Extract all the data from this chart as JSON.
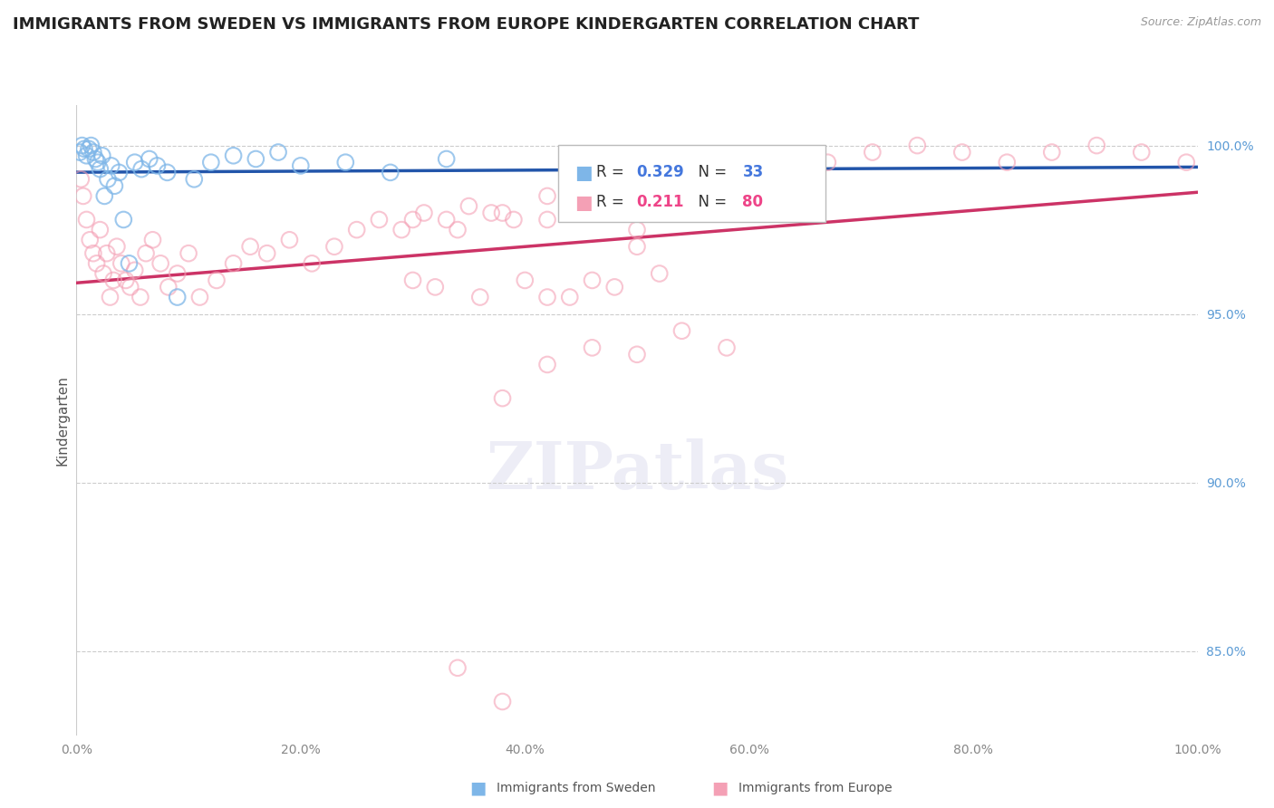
{
  "title": "IMMIGRANTS FROM SWEDEN VS IMMIGRANTS FROM EUROPE KINDERGARTEN CORRELATION CHART",
  "source": "Source: ZipAtlas.com",
  "ylabel": "Kindergarten",
  "legend1_label": "Immigrants from Sweden",
  "legend2_label": "Immigrants from Europe",
  "R_sweden": 0.329,
  "N_sweden": 33,
  "R_europe": 0.211,
  "N_europe": 80,
  "color_sweden": "#7EB6E8",
  "color_europe": "#F4A0B5",
  "trendline_color_sweden": "#2255AA",
  "trendline_color_europe": "#CC3366",
  "background_color": "#FFFFFF",
  "sweden_x": [
    0.3,
    0.5,
    0.7,
    0.9,
    1.1,
    1.3,
    1.5,
    1.7,
    1.9,
    2.1,
    2.3,
    2.5,
    2.8,
    3.1,
    3.4,
    3.8,
    4.2,
    4.7,
    5.2,
    5.8,
    6.5,
    7.2,
    8.1,
    9.0,
    10.5,
    12.0,
    14.0,
    16.0,
    18.0,
    20.0,
    24.0,
    28.0,
    33.0
  ],
  "sweden_y": [
    99.8,
    100.0,
    99.9,
    99.7,
    99.9,
    100.0,
    99.8,
    99.6,
    99.5,
    99.3,
    99.7,
    98.5,
    99.0,
    99.4,
    98.8,
    99.2,
    97.8,
    96.5,
    99.5,
    99.3,
    99.6,
    99.4,
    99.2,
    95.5,
    99.0,
    99.5,
    99.7,
    99.6,
    99.8,
    99.4,
    99.5,
    99.2,
    99.6
  ],
  "europe_x": [
    0.4,
    0.6,
    0.9,
    1.2,
    1.5,
    1.8,
    2.1,
    2.4,
    2.7,
    3.0,
    3.3,
    3.6,
    4.0,
    4.4,
    4.8,
    5.2,
    5.7,
    6.2,
    6.8,
    7.5,
    8.2,
    9.0,
    10.0,
    11.0,
    12.5,
    14.0,
    15.5,
    17.0,
    19.0,
    21.0,
    23.0,
    25.0,
    27.0,
    29.0,
    31.0,
    33.0,
    35.0,
    37.0,
    39.0,
    42.0,
    45.0,
    48.0,
    51.0,
    54.0,
    57.0,
    60.0,
    63.0,
    67.0,
    71.0,
    75.0,
    79.0,
    83.0,
    87.0,
    91.0,
    95.0,
    99.0,
    30.0,
    32.0,
    36.0,
    40.0,
    44.0,
    48.0,
    52.0,
    38.0,
    42.0,
    46.0,
    50.0,
    54.0,
    58.0,
    30.0,
    34.0,
    38.0,
    42.0,
    46.0,
    50.0,
    34.0,
    38.0,
    42.0,
    46.0,
    50.0
  ],
  "europe_y": [
    99.0,
    98.5,
    97.8,
    97.2,
    96.8,
    96.5,
    97.5,
    96.2,
    96.8,
    95.5,
    96.0,
    97.0,
    96.5,
    96.0,
    95.8,
    96.3,
    95.5,
    96.8,
    97.2,
    96.5,
    95.8,
    96.2,
    96.8,
    95.5,
    96.0,
    96.5,
    97.0,
    96.8,
    97.2,
    96.5,
    97.0,
    97.5,
    97.8,
    97.5,
    98.0,
    97.8,
    98.2,
    98.0,
    97.8,
    98.5,
    98.8,
    99.0,
    99.2,
    99.0,
    99.5,
    99.3,
    99.0,
    99.5,
    99.8,
    100.0,
    99.8,
    99.5,
    99.8,
    100.0,
    99.8,
    99.5,
    96.0,
    95.8,
    95.5,
    96.0,
    95.5,
    95.8,
    96.2,
    92.5,
    93.5,
    94.0,
    93.8,
    94.5,
    94.0,
    97.8,
    97.5,
    98.0,
    97.8,
    98.2,
    97.5,
    84.5,
    83.5,
    95.5,
    96.0,
    97.0
  ]
}
